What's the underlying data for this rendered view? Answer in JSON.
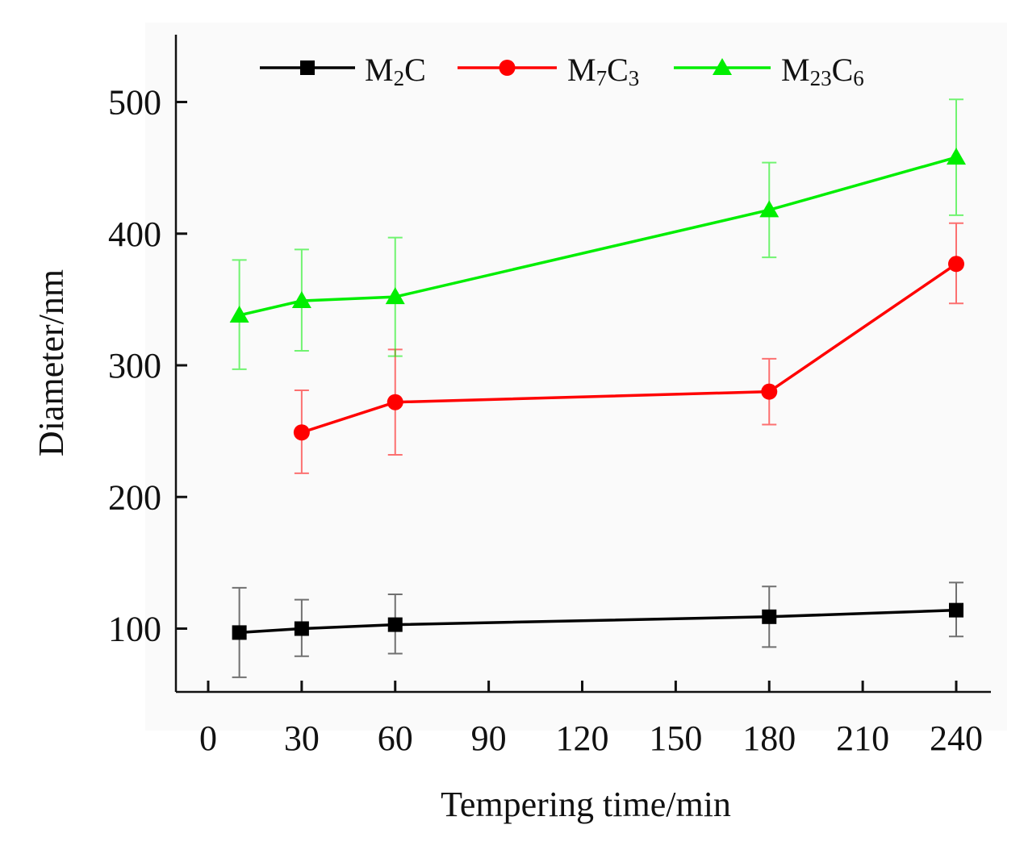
{
  "chart_data": {
    "type": "line",
    "title": "",
    "xlabel": "Tempering time/min",
    "ylabel": "Diameter/nm",
    "xlim": [
      -15,
      245
    ],
    "ylim": [
      50,
      550
    ],
    "xticks": [
      0,
      30,
      60,
      90,
      120,
      150,
      180,
      210,
      240
    ],
    "yticks": [
      100,
      200,
      300,
      400,
      500
    ],
    "legend_position": "top",
    "grid": false,
    "series": [
      {
        "name": "M2C",
        "legend_parts": [
          {
            "t": "M",
            "sub": false
          },
          {
            "t": "2",
            "sub": true
          },
          {
            "t": "C",
            "sub": false
          }
        ],
        "color": "#000000",
        "marker": "square",
        "x": [
          10,
          30,
          60,
          180,
          240
        ],
        "y": [
          97,
          100,
          103,
          109,
          114
        ],
        "err_low": [
          63,
          79,
          81,
          86,
          94
        ],
        "err_high": [
          131,
          122,
          126,
          132,
          135
        ]
      },
      {
        "name": "M7C3",
        "legend_parts": [
          {
            "t": "M",
            "sub": false
          },
          {
            "t": "7",
            "sub": true
          },
          {
            "t": "C",
            "sub": false
          },
          {
            "t": "3",
            "sub": true
          }
        ],
        "color": "#ff0000",
        "marker": "circle",
        "x": [
          30,
          60,
          180,
          240
        ],
        "y": [
          249,
          272,
          280,
          377
        ],
        "err_low": [
          218,
          232,
          255,
          347
        ],
        "err_high": [
          281,
          312,
          305,
          408
        ]
      },
      {
        "name": "M23C6",
        "legend_parts": [
          {
            "t": "M",
            "sub": false
          },
          {
            "t": "23",
            "sub": true
          },
          {
            "t": "C",
            "sub": false
          },
          {
            "t": "6",
            "sub": true
          }
        ],
        "color": "#00ee00",
        "marker": "triangle",
        "x": [
          10,
          30,
          60,
          180,
          240
        ],
        "y": [
          338,
          349,
          352,
          418,
          458
        ],
        "err_low": [
          297,
          311,
          307,
          382,
          414
        ],
        "err_high": [
          380,
          388,
          397,
          454,
          502
        ]
      }
    ]
  }
}
